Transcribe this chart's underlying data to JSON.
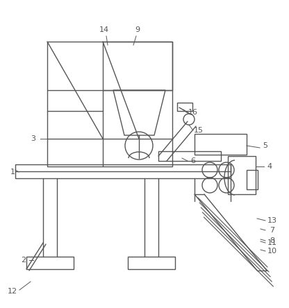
{
  "bg_color": "#ffffff",
  "line_color": "#555555",
  "lw": 1.0,
  "figsize": [
    4.16,
    4.44
  ],
  "dpi": 100
}
